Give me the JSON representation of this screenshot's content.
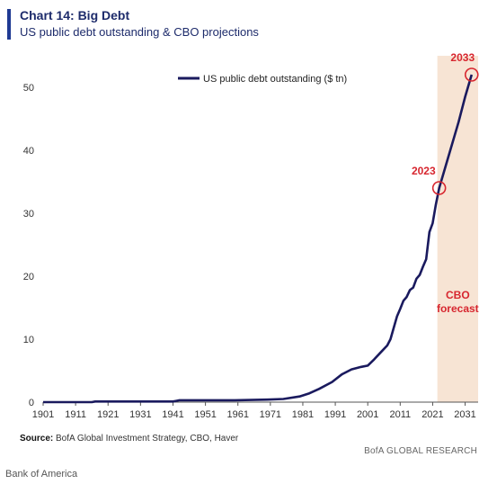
{
  "header": {
    "title": "Chart 14: Big Debt",
    "subtitle": "US public debt outstanding & CBO projections"
  },
  "footer": {
    "source_label": "Source:",
    "source_text": "BofA Global Investment Strategy, CBO, Haver",
    "brand": "BofA GLOBAL RESEARCH",
    "credit": "Bank of America"
  },
  "colors": {
    "line": "#1a1a5e",
    "forecast_band": "#f7e4d4",
    "highlight": "#d7262f",
    "axis": "#555555"
  },
  "chart_data": {
    "type": "line",
    "title": "",
    "xlabel": "",
    "ylabel": "",
    "xlim": [
      1901,
      2035
    ],
    "ylim": [
      0,
      55
    ],
    "x_ticks": [
      1901,
      1911,
      1921,
      1931,
      1941,
      1951,
      1961,
      1971,
      1981,
      1991,
      2001,
      2011,
      2021,
      2031
    ],
    "y_ticks": [
      0,
      10,
      20,
      30,
      40,
      50
    ],
    "grid": false,
    "legend": "top-center",
    "forecast_region": {
      "start": 2023,
      "end": 2035
    },
    "series": [
      {
        "name": "US public debt outstanding ($ tn)",
        "x": [
          1901,
          1916,
          1917,
          1920,
          1930,
          1940,
          1941,
          1942,
          1943,
          1945,
          1950,
          1960,
          1970,
          1975,
          1980,
          1983,
          1986,
          1990,
          1993,
          1996,
          1999,
          2001,
          2003,
          2005,
          2007,
          2008,
          2009,
          2010,
          2011,
          2012,
          2013,
          2014,
          2015,
          2016,
          2017,
          2018,
          2019,
          2020,
          2021,
          2022,
          2023,
          2025,
          2027,
          2029,
          2031,
          2033
        ],
        "values": [
          0.0,
          0.0,
          0.1,
          0.1,
          0.1,
          0.1,
          0.1,
          0.2,
          0.3,
          0.3,
          0.3,
          0.3,
          0.4,
          0.5,
          0.9,
          1.4,
          2.1,
          3.2,
          4.4,
          5.2,
          5.6,
          5.8,
          6.8,
          7.9,
          9.0,
          10.0,
          11.8,
          13.6,
          14.8,
          16.1,
          16.7,
          17.8,
          18.2,
          19.6,
          20.2,
          21.5,
          22.7,
          27.0,
          28.4,
          31.4,
          34.0,
          37.5,
          41.0,
          44.5,
          48.5,
          52.0
        ]
      }
    ],
    "annotations": [
      {
        "label": "2023",
        "x": 2023,
        "y": 34.0
      },
      {
        "label": "2033",
        "x": 2033,
        "y": 52.0
      },
      {
        "label": "CBO forecast",
        "x": 2029,
        "y": 17
      }
    ]
  }
}
